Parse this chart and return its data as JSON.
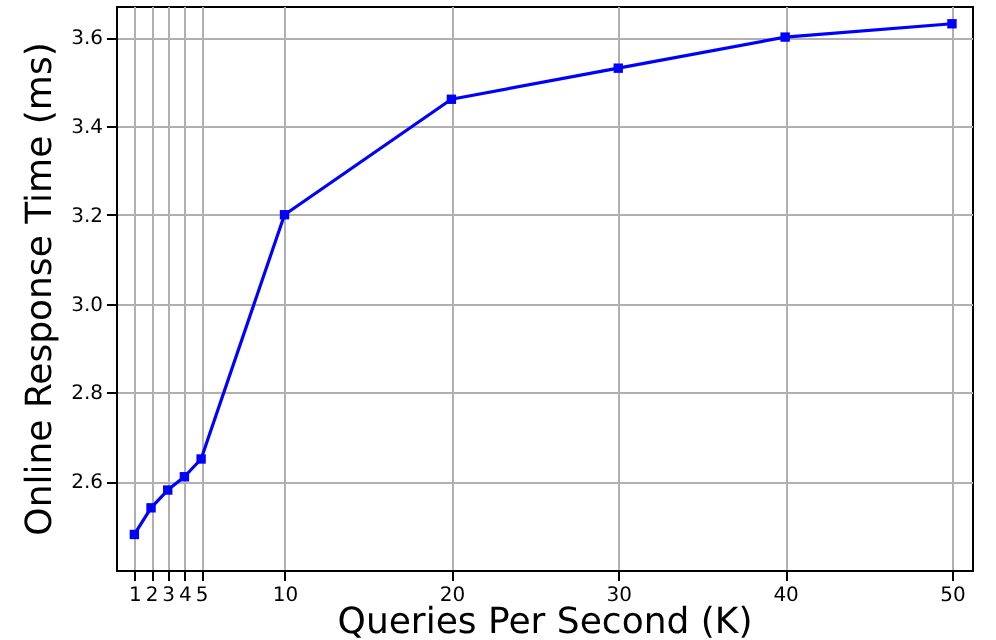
{
  "chart_data": {
    "type": "line",
    "xlabel": "Queries Per Second (K)",
    "ylabel": "Online Response Time (ms)",
    "x": [
      1,
      2,
      3,
      4,
      5,
      10,
      20,
      30,
      40,
      50
    ],
    "series": [
      {
        "color": "#0000ff",
        "values": [
          2.48,
          2.54,
          2.58,
          2.61,
          2.65,
          3.2,
          3.46,
          3.53,
          3.6,
          3.63
        ]
      }
    ],
    "xlim": [
      -0.1,
      51.2
    ],
    "ylim": [
      2.4,
      3.67
    ],
    "xticks": [
      1,
      2,
      3,
      4,
      5,
      10,
      20,
      30,
      40,
      50
    ],
    "yticks": [
      2.6,
      2.8,
      {
        "value": 3,
        "label": "3.0"
      },
      3.2,
      3.4,
      3.6
    ],
    "grid": true,
    "marker": "square",
    "line_style": "solid"
  }
}
